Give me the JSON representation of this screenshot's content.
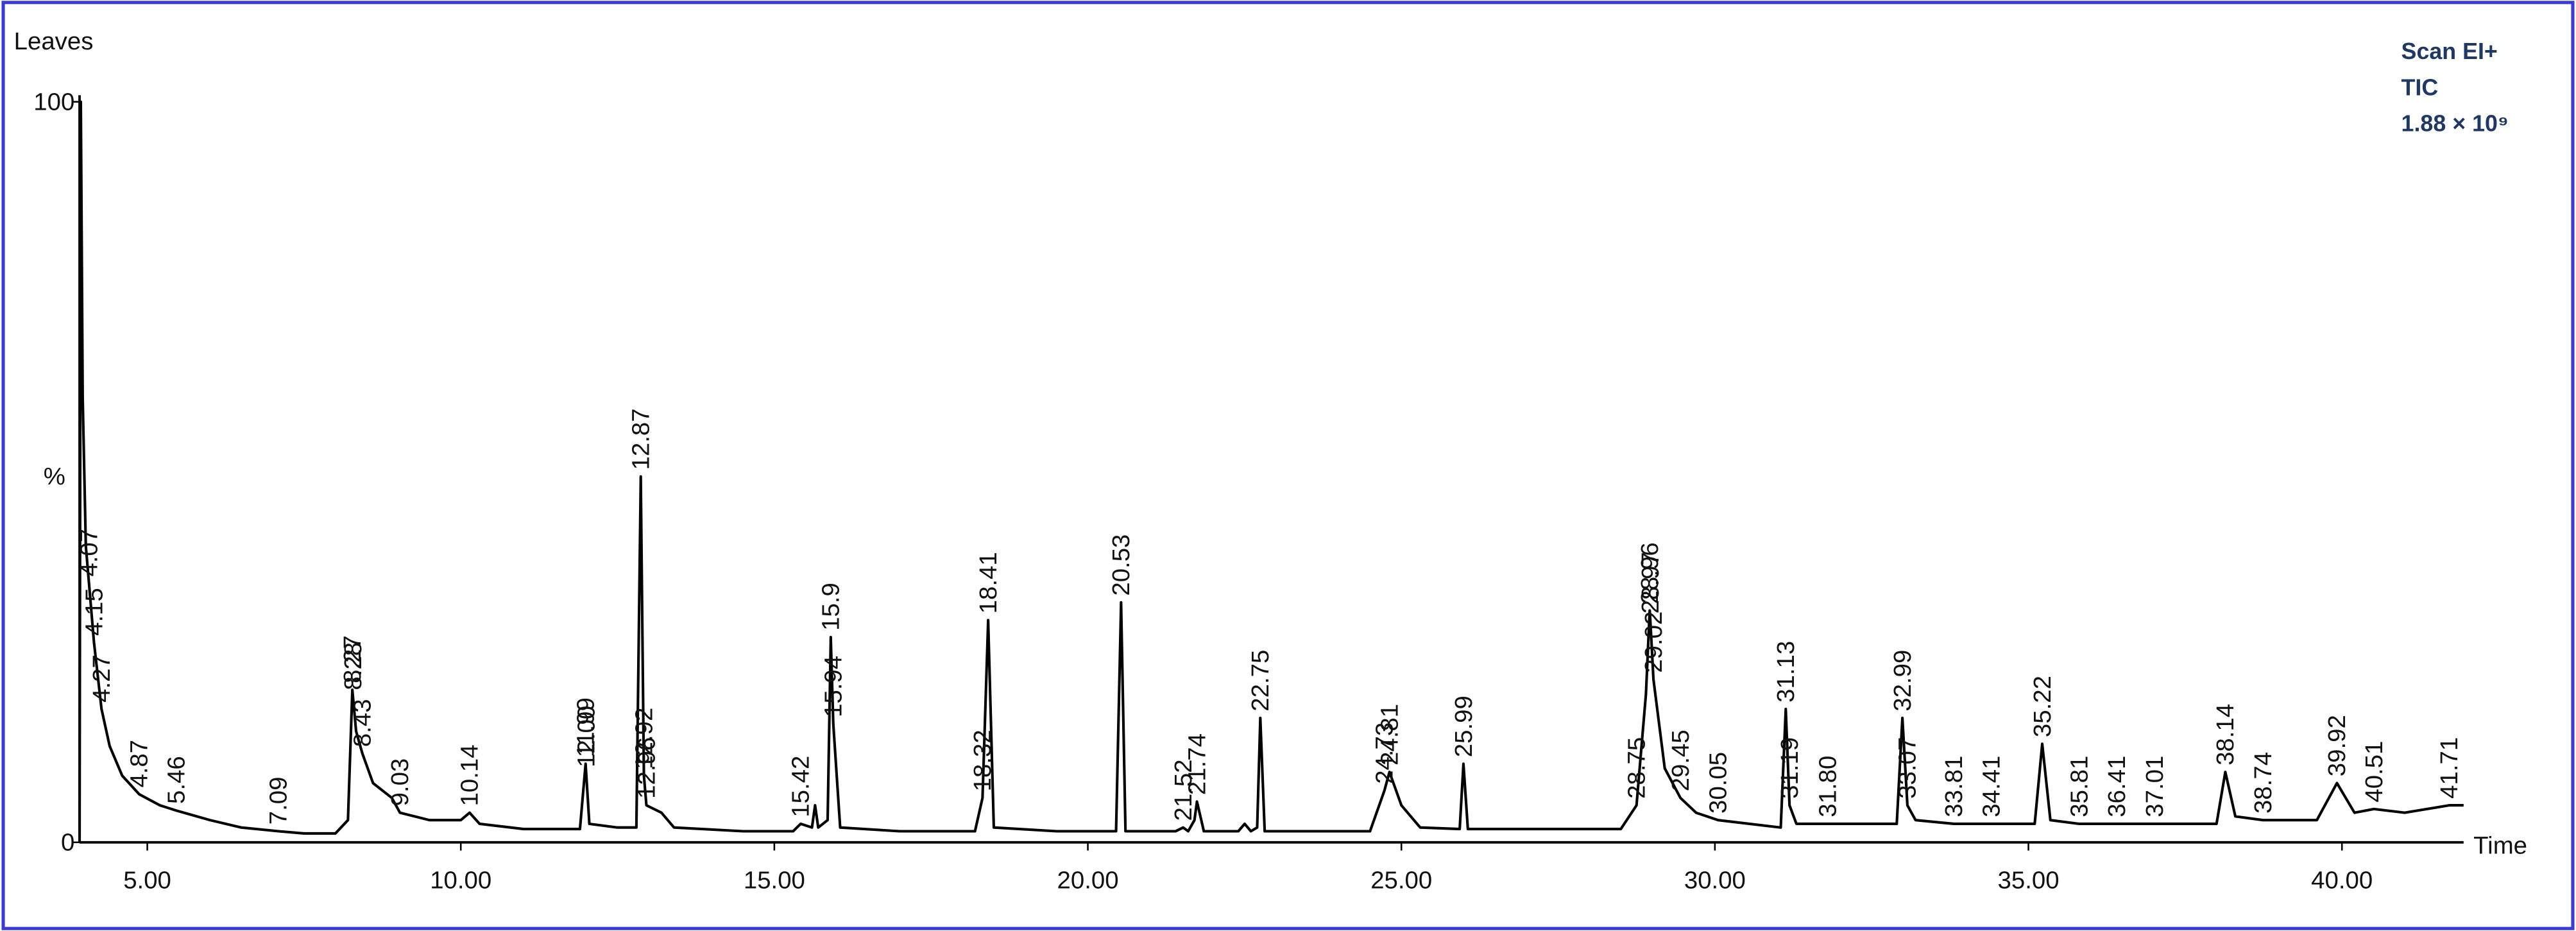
{
  "chart_data": {
    "type": "line",
    "title": "Leaves",
    "x_label": "Time",
    "y_label": "%",
    "annotations": [
      "Scan EI+",
      "TIC",
      "1.88 × 10⁹"
    ],
    "color": "#000000",
    "xlim": [
      3.92,
      41.94
    ],
    "ylim": [
      0,
      100
    ],
    "xticks": [
      {
        "value": 5,
        "label": "5.00"
      },
      {
        "value": 10,
        "label": "10.00"
      },
      {
        "value": 15,
        "label": "15.00"
      },
      {
        "value": 20,
        "label": "20.00"
      },
      {
        "value": 25,
        "label": "25.00"
      },
      {
        "value": 30,
        "label": "30.00"
      },
      {
        "value": 35,
        "label": "35.00"
      },
      {
        "value": 40,
        "label": "40.00"
      }
    ],
    "yticks": [
      0,
      100
    ],
    "x": [
      3.92,
      3.94,
      3.97,
      4.02,
      4.07,
      4.15,
      4.27,
      4.4,
      4.6,
      4.87,
      5.2,
      5.46,
      6.0,
      6.5,
      7.09,
      7.5,
      8.0,
      8.2,
      8.27,
      8.33,
      8.43,
      8.6,
      8.9,
      9.03,
      9.5,
      10.0,
      10.14,
      10.3,
      11.0,
      11.9,
      11.99,
      12.05,
      12.5,
      12.8,
      12.87,
      12.92,
      12.96,
      13.2,
      13.4,
      14.5,
      15.3,
      15.42,
      15.6,
      15.65,
      15.7,
      15.85,
      15.9,
      15.94,
      16.05,
      17.0,
      18.2,
      18.32,
      18.41,
      18.5,
      19.5,
      20.45,
      20.53,
      20.6,
      21.4,
      21.52,
      21.6,
      21.7,
      21.74,
      21.85,
      22.4,
      22.5,
      22.6,
      22.7,
      22.75,
      22.82,
      24.5,
      24.73,
      24.81,
      25.0,
      25.3,
      25.93,
      25.99,
      26.06,
      28.5,
      28.75,
      28.9,
      28.96,
      28.97,
      29.02,
      29.2,
      29.45,
      29.7,
      30.05,
      31.05,
      31.13,
      31.19,
      31.3,
      31.8,
      32.9,
      32.99,
      33.07,
      33.2,
      33.81,
      34.41,
      35.1,
      35.22,
      35.35,
      35.81,
      36.41,
      37.01,
      38.0,
      38.14,
      38.3,
      38.74,
      39.6,
      39.92,
      40.2,
      40.51,
      41.0,
      41.71,
      41.94
    ],
    "values": [
      0,
      100,
      60,
      40,
      35,
      27,
      18,
      13,
      9,
      6.5,
      5,
      4.3,
      3,
      2,
      1.5,
      1.2,
      1.2,
      3,
      20.6,
      15,
      12,
      8,
      6,
      4,
      3,
      3,
      4,
      2.5,
      1.8,
      1.8,
      10.6,
      2.5,
      2,
      2,
      49.4,
      9,
      5,
      4,
      2,
      1.5,
      1.5,
      2.5,
      2,
      5,
      2,
      3,
      27.7,
      16,
      2,
      1.5,
      1.5,
      6,
      30,
      2,
      1.5,
      1.5,
      32.4,
      1.5,
      1.5,
      2,
      1.5,
      3,
      5.5,
      1.5,
      1.5,
      2.5,
      1.5,
      2,
      16.8,
      1.5,
      1.5,
      7,
      9.5,
      5,
      2,
      1.8,
      10.6,
      1.8,
      1.8,
      5,
      20,
      31.3,
      30,
      22,
      10,
      6,
      4,
      3,
      2,
      18,
      5,
      2.5,
      2.5,
      2.5,
      16.8,
      5,
      3,
      2.5,
      2.5,
      2.5,
      13.3,
      3,
      2.5,
      2.5,
      2.5,
      2.5,
      9.5,
      3.5,
      3,
      3,
      8,
      4,
      4.5,
      4,
      5,
      5
    ],
    "peak_labels": [
      4.07,
      4.15,
      4.27,
      4.87,
      5.46,
      7.09,
      8.27,
      8.28,
      8.43,
      9.03,
      10.14,
      11.99,
      {
        "value": 12,
        "label": "12.00"
      },
      12.87,
      12.92,
      12.96,
      15.42,
      15.9,
      15.94,
      18.32,
      18.41,
      20.53,
      21.52,
      21.74,
      22.75,
      24.73,
      24.81,
      25.99,
      28.75,
      28.96,
      28.97,
      29.02,
      29.45,
      30.05,
      31.13,
      31.19,
      {
        "value": 31.8,
        "label": "31.80"
      },
      32.99,
      33.07,
      33.81,
      34.41,
      35.22,
      35.81,
      36.41,
      37.01,
      38.14,
      38.74,
      39.92,
      40.51,
      41.71
    ]
  }
}
